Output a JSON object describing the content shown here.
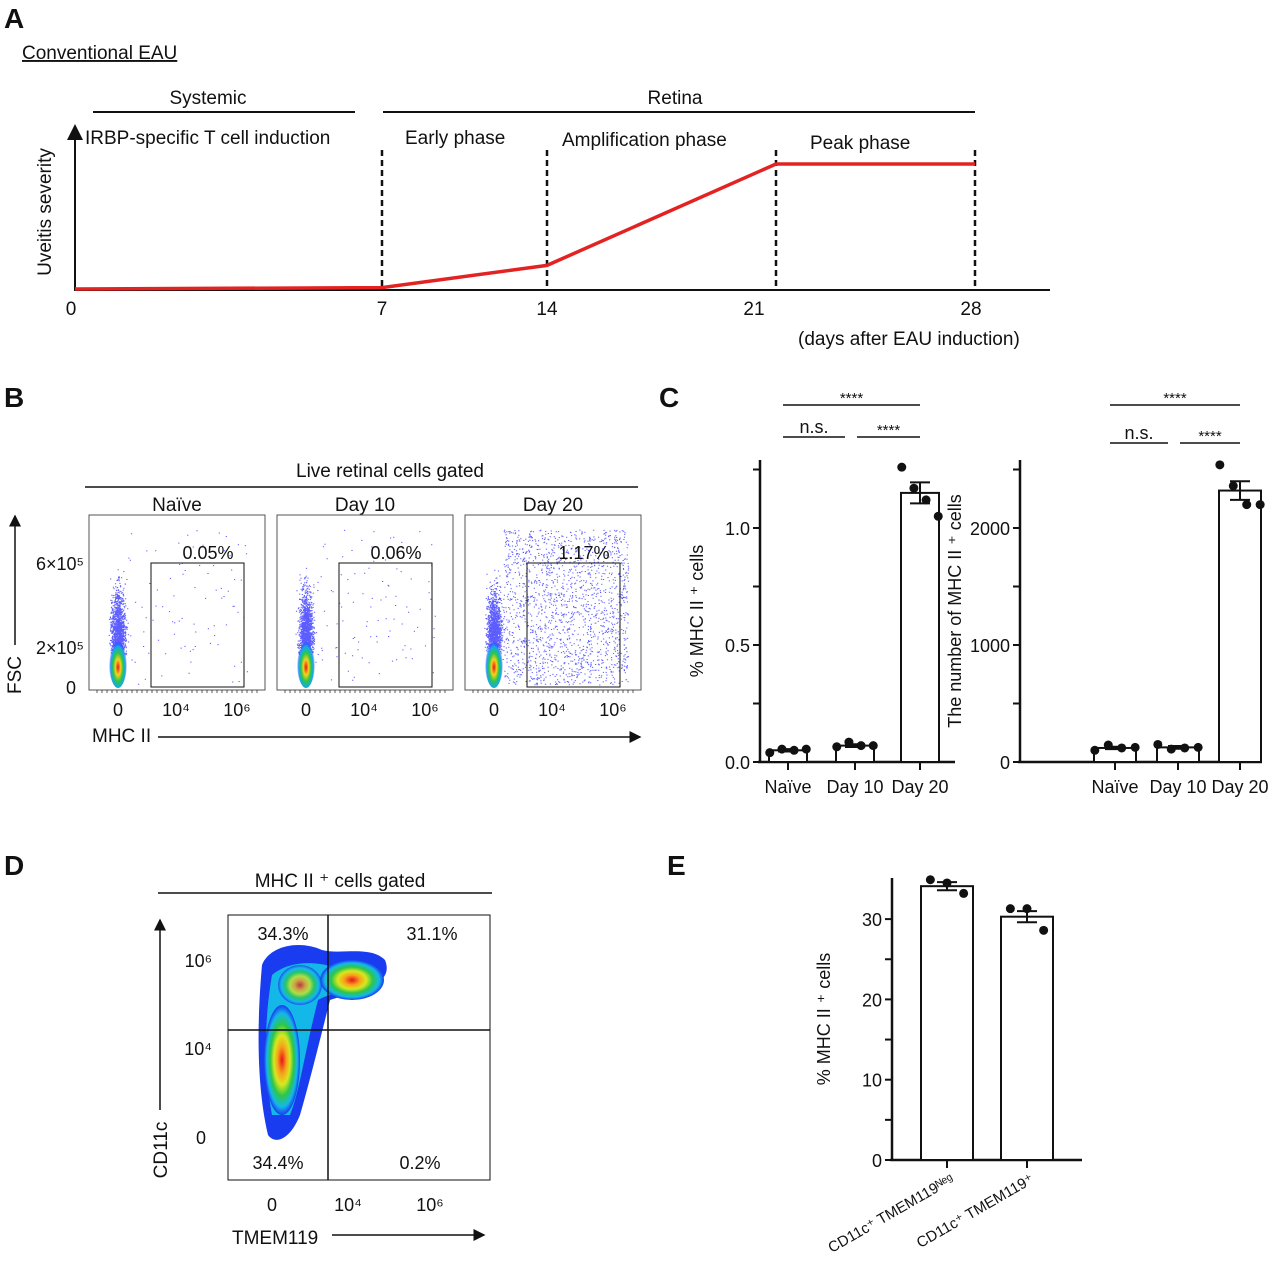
{
  "panels": {
    "A": {
      "letter": "A",
      "subtitle": "Conventional EAU",
      "systemic": "Systemic",
      "retina": "Retina",
      "phases": [
        "IRBP-specific T cell induction",
        "Early phase",
        "Amplification phase",
        "Peak phase"
      ],
      "ylabel": "Uveitis severity",
      "xticks": [
        "0",
        "7",
        "14",
        "21",
        "28"
      ],
      "xlabel": "(days after EAU induction)",
      "line_color": "#e32322"
    },
    "B": {
      "letter": "B",
      "header": "Live retinal cells gated",
      "plots": [
        {
          "title": "Naïve",
          "gate_pct": "0.05%"
        },
        {
          "title": "Day 10",
          "gate_pct": "0.06%"
        },
        {
          "title": "Day 20",
          "gate_pct": "1.17%"
        }
      ],
      "yticks": [
        "6×10⁵",
        "2×10⁵",
        "0"
      ],
      "xticks": [
        "0",
        "10⁴",
        "10⁶"
      ],
      "ylabel": "FSC",
      "xlabel": "MHC II",
      "dot_color": "#1a1aff"
    },
    "C": {
      "letter": "C"
    },
    "D": {
      "letter": "D",
      "header": "MHC II ⁺ cells gated",
      "quadrants": {
        "upper_left": "34.3%",
        "upper_right": "31.1%",
        "lower_left": "34.4%",
        "lower_right": "0.2%"
      },
      "yticks": [
        "10⁶",
        "10⁴",
        "0"
      ],
      "xticks": [
        "0",
        "10⁴",
        "10⁶"
      ],
      "ylabel": "CD11c",
      "xlabel": "TMEM119"
    },
    "E": {
      "letter": "E"
    }
  },
  "chart_data": [
    {
      "id": "A",
      "type": "line",
      "x": [
        0,
        7,
        14,
        21,
        28
      ],
      "y_relative": [
        0,
        0.01,
        0.17,
        0.9,
        0.9
      ],
      "xlabel": "(days after EAU induction)",
      "ylabel": "Uveitis severity"
    },
    {
      "id": "C-left",
      "type": "bar",
      "categories": [
        "Naïve",
        "Day 10",
        "Day 20"
      ],
      "values": [
        0.05,
        0.07,
        1.15
      ],
      "sem": [
        0.005,
        0.006,
        0.045
      ],
      "points": [
        [
          0.04,
          0.055,
          0.05,
          0.055
        ],
        [
          0.065,
          0.085,
          0.07,
          0.07
        ],
        [
          1.26,
          1.17,
          1.12,
          1.05
        ]
      ],
      "ylabel": "% MHC II ⁺ cells",
      "ylim": [
        0,
        1.3
      ],
      "yticks": [
        "0.0",
        "0.5",
        "1.0"
      ],
      "significance": [
        {
          "pair": [
            "Naïve",
            "Day 20"
          ],
          "label": "****"
        },
        {
          "pair": [
            "Naïve",
            "Day 10"
          ],
          "label": "n.s."
        },
        {
          "pair": [
            "Day 10",
            "Day 20"
          ],
          "label": "****"
        }
      ]
    },
    {
      "id": "C-right",
      "type": "bar",
      "categories": [
        "Naïve",
        "Day 10",
        "Day 20"
      ],
      "values": [
        120,
        125,
        2320
      ],
      "sem": [
        10,
        12,
        80
      ],
      "points": [
        [
          100,
          145,
          120,
          125
        ],
        [
          150,
          110,
          120,
          125
        ],
        [
          2540,
          2360,
          2200,
          2200
        ]
      ],
      "ylabel": "The number of MHC II ⁺ cells",
      "ylim": [
        0,
        2600
      ],
      "yticks": [
        "0",
        "1000",
        "2000"
      ],
      "significance": [
        {
          "pair": [
            "Naïve",
            "Day 20"
          ],
          "label": "****"
        },
        {
          "pair": [
            "Naïve",
            "Day 10"
          ],
          "label": "n.s."
        },
        {
          "pair": [
            "Day 10",
            "Day 20"
          ],
          "label": "****"
        }
      ]
    },
    {
      "id": "E",
      "type": "bar",
      "categories": [
        "CD11c⁺ TMEM119ᴺᵉᵍ",
        "CD11c⁺ TMEM119⁺"
      ],
      "values": [
        34.1,
        30.3
      ],
      "sem": [
        0.5,
        0.7
      ],
      "points": [
        [
          34.9,
          34.5,
          33.2
        ],
        [
          31.3,
          31.3,
          28.6
        ]
      ],
      "ylabel": "% MHC II ⁺ cells",
      "ylim": [
        0,
        35
      ],
      "yticks": [
        "0",
        "10",
        "20",
        "30"
      ]
    }
  ]
}
